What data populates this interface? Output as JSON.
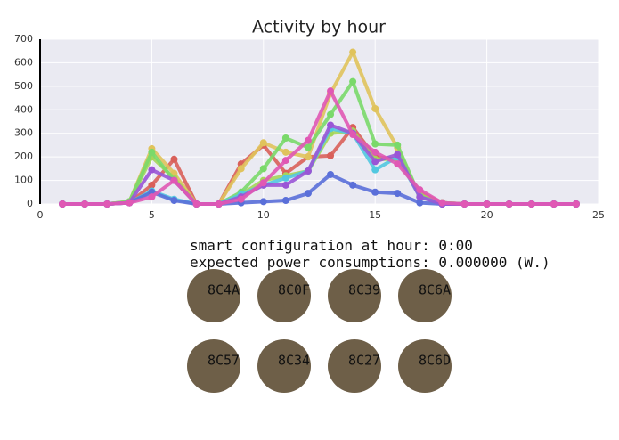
{
  "chart_data": {
    "type": "line",
    "title": "Activity by hour",
    "x": [
      1,
      2,
      3,
      4,
      5,
      6,
      7,
      8,
      9,
      10,
      11,
      12,
      13,
      14,
      15,
      16,
      17,
      18,
      19,
      20,
      21,
      22,
      23,
      24
    ],
    "series": [
      {
        "color": "#d9605a",
        "values": [
          0,
          0,
          0,
          5,
          80,
          190,
          0,
          0,
          170,
          250,
          130,
          200,
          205,
          325,
          200,
          190,
          50,
          5,
          0,
          0,
          0,
          0,
          0,
          0
        ]
      },
      {
        "color": "#e0c35c",
        "values": [
          0,
          0,
          0,
          10,
          235,
          130,
          0,
          0,
          150,
          260,
          220,
          200,
          470,
          645,
          405,
          240,
          30,
          5,
          0,
          0,
          0,
          0,
          0,
          0
        ]
      },
      {
        "color": "#a4d65a",
        "values": [
          0,
          0,
          0,
          10,
          200,
          110,
          0,
          0,
          40,
          100,
          120,
          140,
          300,
          310,
          190,
          190,
          40,
          0,
          0,
          0,
          0,
          0,
          0,
          0
        ]
      },
      {
        "color": "#7ad96a",
        "values": [
          0,
          0,
          0,
          10,
          220,
          100,
          0,
          0,
          50,
          150,
          280,
          240,
          380,
          520,
          255,
          250,
          30,
          5,
          0,
          0,
          0,
          0,
          0,
          0
        ]
      },
      {
        "color": "#52c8e0",
        "values": [
          0,
          0,
          0,
          5,
          55,
          20,
          0,
          0,
          40,
          80,
          110,
          140,
          320,
          300,
          145,
          200,
          30,
          0,
          0,
          0,
          0,
          0,
          0,
          0
        ]
      },
      {
        "color": "#5a6fd9",
        "values": [
          0,
          0,
          0,
          5,
          50,
          15,
          0,
          0,
          5,
          10,
          15,
          45,
          125,
          80,
          50,
          45,
          5,
          0,
          0,
          0,
          0,
          0,
          0,
          0
        ]
      },
      {
        "color": "#9a55d6",
        "values": [
          0,
          0,
          0,
          5,
          145,
          100,
          0,
          0,
          30,
          80,
          80,
          140,
          335,
          300,
          180,
          210,
          30,
          0,
          0,
          0,
          0,
          0,
          0,
          0
        ]
      },
      {
        "color": "#e058b4",
        "values": [
          0,
          0,
          0,
          5,
          30,
          100,
          0,
          0,
          20,
          90,
          185,
          270,
          480,
          295,
          220,
          170,
          60,
          5,
          0,
          0,
          0,
          0,
          0,
          0
        ]
      }
    ],
    "xlim": [
      0,
      25
    ],
    "xticks": [
      0,
      5,
      10,
      15,
      20,
      25
    ],
    "ylim": [
      0,
      700
    ],
    "yticks": [
      0,
      100,
      200,
      300,
      400,
      500,
      600,
      700
    ],
    "grid": true
  },
  "status": {
    "line1": "smart configuration at hour: 0:00",
    "line2": "expected power consumptions: 0.000000 (W.)"
  },
  "devices": [
    "8C4A",
    "8C0F",
    "8C39",
    "8C6A",
    "8C57",
    "8C34",
    "8C27",
    "8C6D"
  ]
}
